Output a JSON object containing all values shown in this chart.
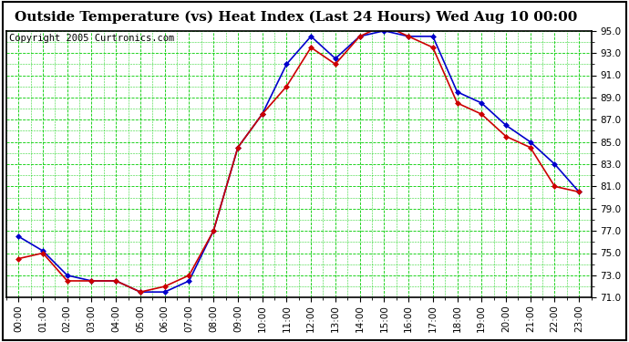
{
  "title": "Outside Temperature (vs) Heat Index (Last 24 Hours) Wed Aug 10 00:00",
  "copyright": "Copyright 2005 Curtronics.com",
  "hours": [
    0,
    1,
    2,
    3,
    4,
    5,
    6,
    7,
    8,
    9,
    10,
    11,
    12,
    13,
    14,
    15,
    16,
    17,
    18,
    19,
    20,
    21,
    22,
    23
  ],
  "x_labels": [
    "00:00",
    "01:00",
    "02:00",
    "03:00",
    "04:00",
    "05:00",
    "06:00",
    "07:00",
    "08:00",
    "09:00",
    "10:00",
    "11:00",
    "12:00",
    "13:00",
    "14:00",
    "15:00",
    "16:00",
    "17:00",
    "18:00",
    "19:00",
    "20:00",
    "21:00",
    "22:00",
    "23:00"
  ],
  "blue_data": [
    76.5,
    75.2,
    73.0,
    72.5,
    72.5,
    71.5,
    71.5,
    72.5,
    77.0,
    84.5,
    87.5,
    92.0,
    94.5,
    92.5,
    94.5,
    95.0,
    94.5,
    94.5,
    89.5,
    88.5,
    86.5,
    85.0,
    83.0,
    80.5
  ],
  "red_data": [
    74.5,
    75.0,
    72.5,
    72.5,
    72.5,
    71.5,
    72.0,
    73.0,
    77.0,
    84.5,
    87.5,
    90.0,
    93.5,
    92.0,
    94.5,
    95.5,
    94.5,
    93.5,
    88.5,
    87.5,
    85.5,
    84.5,
    81.0,
    80.5
  ],
  "ylim": [
    71.0,
    95.0
  ],
  "yticks": [
    71.0,
    73.0,
    75.0,
    77.0,
    79.0,
    81.0,
    83.0,
    85.0,
    87.0,
    89.0,
    91.0,
    93.0,
    95.0
  ],
  "blue_color": "#0000cc",
  "red_color": "#cc0000",
  "bg_color": "#ffffff",
  "plot_bg_color": "#ffffff",
  "grid_color": "#00cc00",
  "title_fontsize": 11,
  "copyright_fontsize": 7.5
}
